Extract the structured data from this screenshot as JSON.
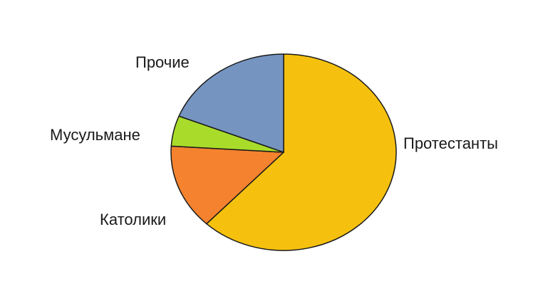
{
  "chart_data": {
    "type": "pie",
    "slices": [
      {
        "label": "Протестанты",
        "value": 62,
        "color": "#f5c10e"
      },
      {
        "label": "Католики",
        "value": 14,
        "color": "#f5822e"
      },
      {
        "label": "Мусульмане",
        "value": 5,
        "color": "#a9dc2a"
      },
      {
        "label": "Прочие",
        "value": 19,
        "color": "#7594c0"
      }
    ],
    "legend": "none",
    "labels_position": "outside"
  }
}
